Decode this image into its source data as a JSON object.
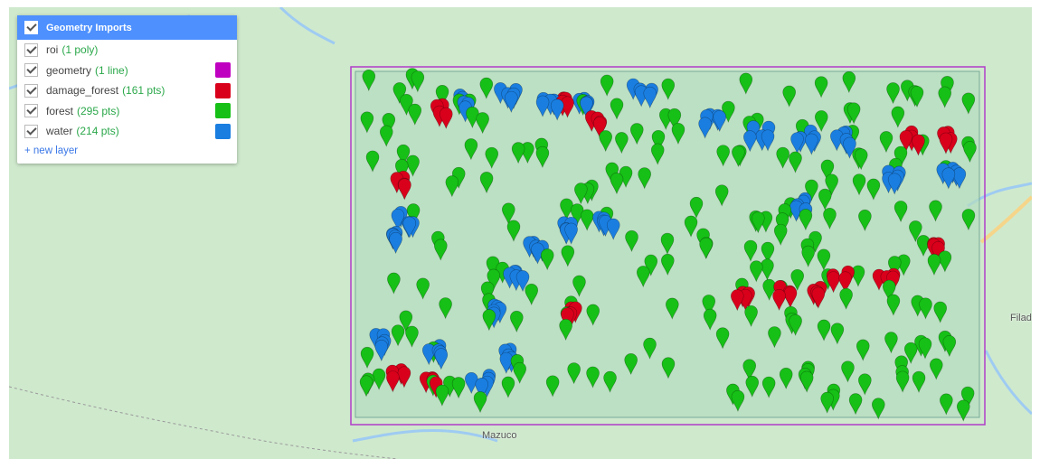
{
  "panel": {
    "title": "Geometry Imports",
    "layers": [
      {
        "name": "roi",
        "count": "(1 poly)",
        "color": null
      },
      {
        "name": "geometry",
        "count": "(1 line)",
        "color": "#c000c0"
      },
      {
        "name": "damage_forest",
        "count": "(161 pts)",
        "color": "#d9001b"
      },
      {
        "name": "forest",
        "count": "(295 pts)",
        "color": "#16c016"
      },
      {
        "name": "water",
        "count": "(214 pts)",
        "color": "#1a7ee0"
      }
    ],
    "new_layer": "+ new layer"
  },
  "map": {
    "labels": {
      "town1": "Mazuco",
      "town2": "Filad"
    },
    "colors": {
      "land": "#cfe9cd",
      "water": "#9ecbf2",
      "roi_fill": "#b3dcbf",
      "roi_line": "#b03cc8",
      "road": "#f5d58a"
    }
  }
}
